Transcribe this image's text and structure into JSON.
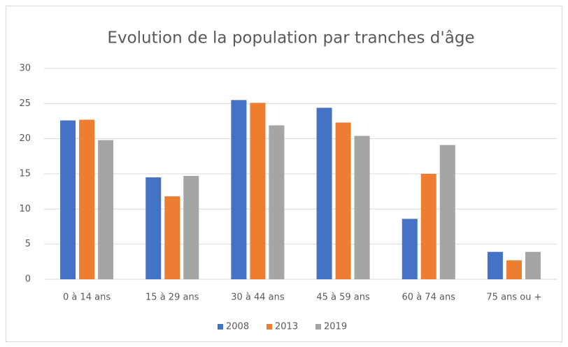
{
  "chart_data": {
    "type": "bar",
    "title": "Evolution de la population par tranches d'âge",
    "categories": [
      "0 à 14 ans",
      "15 à 29 ans",
      "30 à 44 ans",
      "45 à 59 ans",
      "60 à 74 ans",
      "75 ans ou +"
    ],
    "series": [
      {
        "name": "2008",
        "color": "#4472c4",
        "values": [
          22.6,
          14.5,
          25.5,
          24.4,
          8.6,
          3.9
        ]
      },
      {
        "name": "2013",
        "color": "#ed7d31",
        "values": [
          22.7,
          11.8,
          25.1,
          22.3,
          15.0,
          2.7
        ]
      },
      {
        "name": "2019",
        "color": "#a5a5a5",
        "values": [
          19.8,
          14.7,
          21.9,
          20.4,
          19.1,
          3.9
        ]
      }
    ],
    "ylim": [
      0,
      30
    ],
    "yticks": [
      0,
      5,
      10,
      15,
      20,
      25,
      30
    ],
    "grid": true,
    "legend": "bottom"
  }
}
